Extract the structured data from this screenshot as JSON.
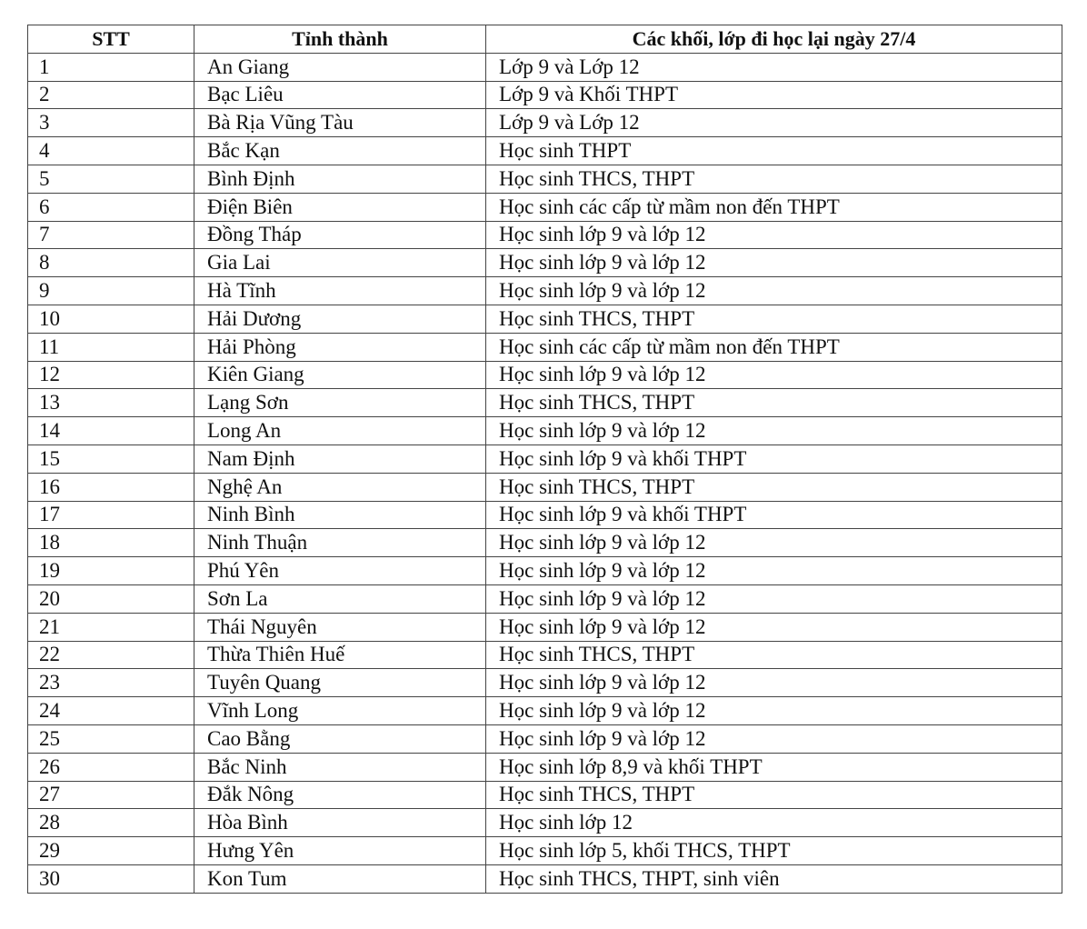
{
  "table": {
    "headers": [
      "STT",
      "Tỉnh thành",
      "Các khối, lớp đi học lại ngày 27/4"
    ],
    "rows": [
      [
        "1",
        "An Giang",
        "Lớp 9 và Lớp 12"
      ],
      [
        "2",
        "Bạc Liêu",
        "Lớp 9 và Khối THPT"
      ],
      [
        "3",
        "Bà Rịa Vũng Tàu",
        "Lớp 9 và Lớp 12"
      ],
      [
        "4",
        "Bắc Kạn",
        "Học sinh THPT"
      ],
      [
        "5",
        "Bình Định",
        "Học sinh THCS, THPT"
      ],
      [
        "6",
        "Điện Biên",
        "Học sinh các cấp từ mầm non đến THPT"
      ],
      [
        "7",
        "Đồng Tháp",
        "Học sinh lớp 9 và lớp 12"
      ],
      [
        "8",
        "Gia Lai",
        "Học sinh lớp 9 và lớp 12"
      ],
      [
        "9",
        "Hà Tĩnh",
        "Học sinh lớp 9 và lớp 12"
      ],
      [
        "10",
        "Hải Dương",
        "Học sinh THCS, THPT"
      ],
      [
        "11",
        "Hải Phòng",
        "Học sinh các cấp từ mầm non đến THPT"
      ],
      [
        "12",
        "Kiên Giang",
        "Học sinh lớp 9 và lớp 12"
      ],
      [
        "13",
        "Lạng Sơn",
        "Học sinh THCS, THPT"
      ],
      [
        "14",
        "Long An",
        "Học sinh lớp 9 và lớp 12"
      ],
      [
        "15",
        "Nam Định",
        "Học sinh lớp 9 và khối THPT"
      ],
      [
        "16",
        "Nghệ An",
        "Học sinh THCS, THPT"
      ],
      [
        "17",
        "Ninh Bình",
        "Học sinh lớp 9 và khối THPT"
      ],
      [
        "18",
        "Ninh Thuận",
        "Học sinh lớp 9 và lớp 12"
      ],
      [
        "19",
        "Phú Yên",
        "Học sinh lớp 9 và lớp 12"
      ],
      [
        "20",
        "Sơn La",
        "Học sinh lớp 9 và lớp 12"
      ],
      [
        "21",
        "Thái Nguyên",
        "Học sinh lớp 9 và lớp 12"
      ],
      [
        "22",
        "Thừa Thiên Huế",
        "Học sinh THCS, THPT"
      ],
      [
        "23",
        "Tuyên Quang",
        "Học sinh lớp 9 và lớp 12"
      ],
      [
        "24",
        "Vĩnh Long",
        "Học sinh lớp 9 và lớp 12"
      ],
      [
        "25",
        "Cao Bằng",
        "Học sinh lớp 9 và lớp 12"
      ],
      [
        "26",
        "Bắc Ninh",
        "Học sinh lớp 8,9 và khối THPT"
      ],
      [
        "27",
        "Đắk Nông",
        "Học sinh THCS, THPT"
      ],
      [
        "28",
        "Hòa Bình",
        "Học sinh lớp 12"
      ],
      [
        "29",
        "Hưng Yên",
        "Học sinh lớp 5, khối THCS, THPT"
      ],
      [
        "30",
        "Kon Tum",
        "Học sinh THCS, THPT, sinh viên"
      ]
    ]
  }
}
